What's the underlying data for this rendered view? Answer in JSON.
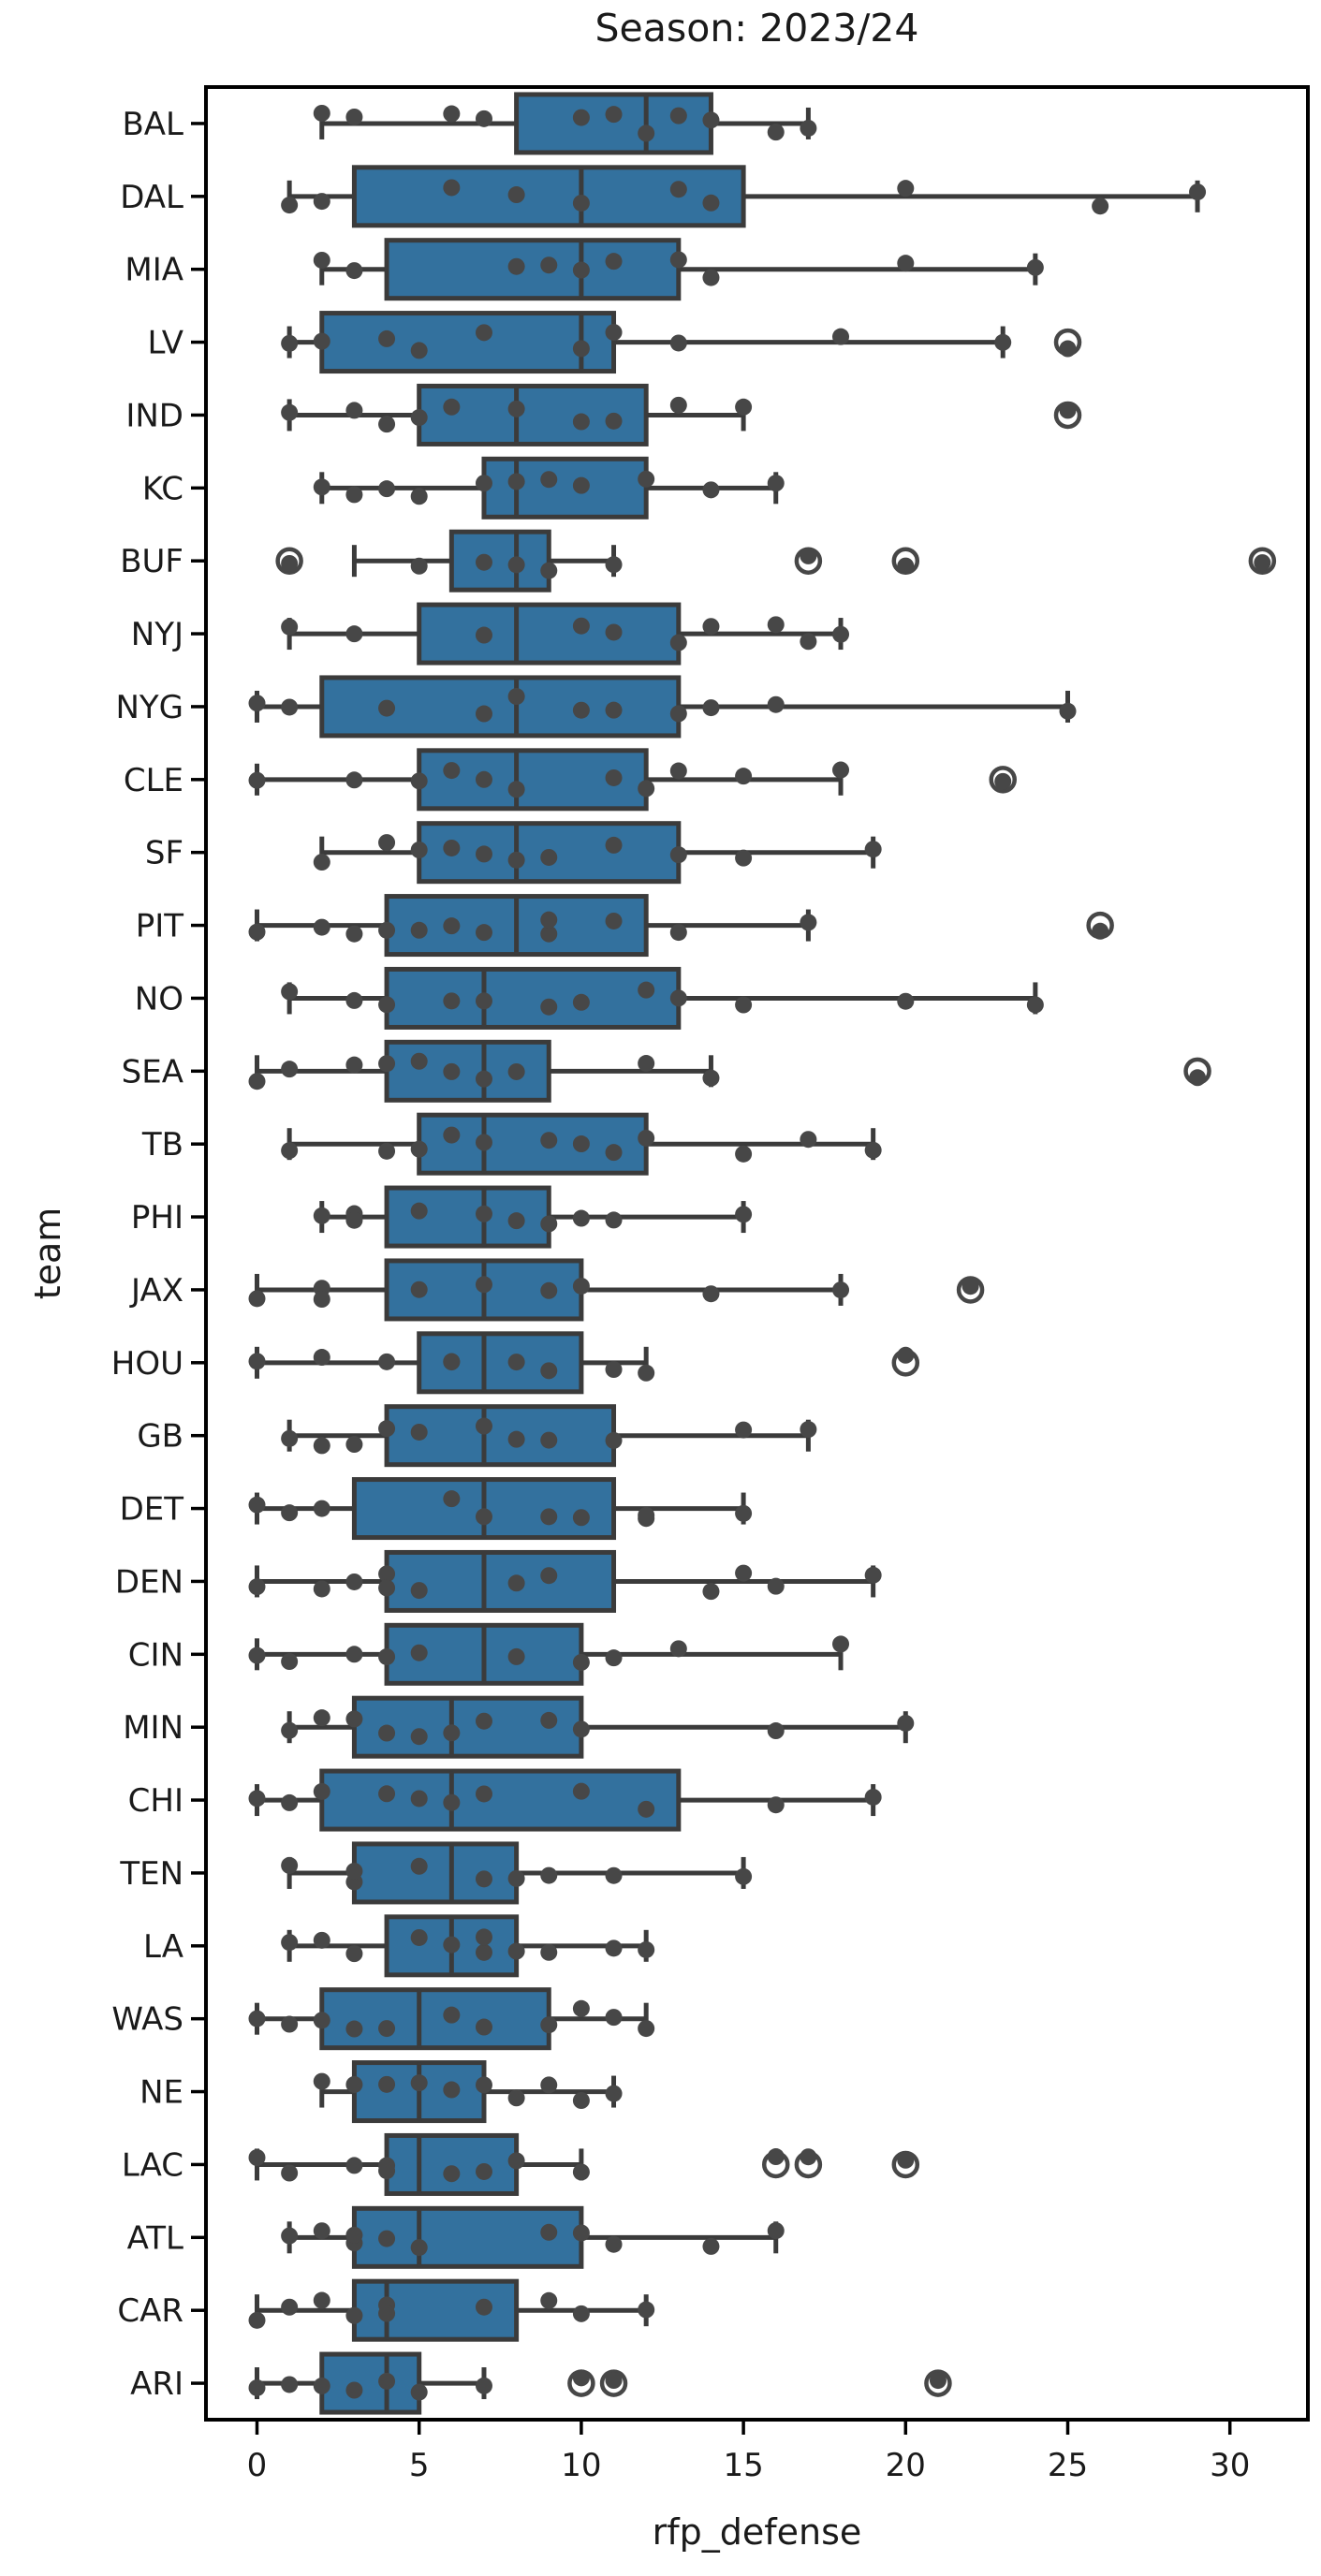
{
  "title": "Season: 2023/24",
  "x_axis": {
    "label": "rfp_defense",
    "ticks": [
      0,
      5,
      10,
      15,
      20,
      25,
      30
    ]
  },
  "y_axis": {
    "label": "team"
  },
  "colors": {
    "box_fill": "#33719e",
    "box_edge": "#3b3b3b",
    "whisker": "#3b3b3b",
    "point": "#474747",
    "outlier_ring": "#474747",
    "spine": "#000000",
    "text": "#1a1a1a",
    "background": "#ffffff"
  },
  "chart_data": {
    "type": "boxplot-horizontal",
    "title": "Season: 2023/24",
    "xlabel": "rfp_defense",
    "ylabel": "team",
    "xlim": [
      -1.52,
      32.4
    ],
    "x_ticks": [
      0,
      5,
      10,
      15,
      20,
      25,
      30
    ],
    "grid": false,
    "categories": [
      "BAL",
      "DAL",
      "MIA",
      "LV",
      "IND",
      "KC",
      "BUF",
      "NYJ",
      "NYG",
      "CLE",
      "SF",
      "PIT",
      "NO",
      "SEA",
      "TB",
      "PHI",
      "JAX",
      "HOU",
      "GB",
      "DET",
      "DEN",
      "CIN",
      "MIN",
      "CHI",
      "TEN",
      "LA",
      "WAS",
      "NE",
      "LAC",
      "ATL",
      "CAR",
      "ARI"
    ],
    "stats": [
      {
        "team": "BAL",
        "whislo": 2,
        "q1": 8,
        "med": 12,
        "q3": 14,
        "whishi": 17,
        "outliers": [],
        "points": [
          2,
          3,
          6,
          7,
          10,
          11,
          12,
          13,
          14,
          16,
          17
        ]
      },
      {
        "team": "DAL",
        "whislo": 1,
        "q1": 3,
        "med": 10,
        "q3": 15,
        "whishi": 29,
        "outliers": [],
        "points": [
          1,
          2,
          6,
          8,
          10,
          13,
          14,
          20,
          26,
          29
        ]
      },
      {
        "team": "MIA",
        "whislo": 2,
        "q1": 4,
        "med": 10,
        "q3": 13,
        "whishi": 24,
        "outliers": [],
        "points": [
          2,
          3,
          8,
          9,
          10,
          11,
          13,
          14,
          20,
          24
        ]
      },
      {
        "team": "LV",
        "whislo": 1,
        "q1": 2,
        "med": 10,
        "q3": 11,
        "whishi": 23,
        "outliers": [
          25
        ],
        "points": [
          1,
          2,
          4,
          5,
          7,
          10,
          11,
          13,
          18,
          23,
          25
        ]
      },
      {
        "team": "IND",
        "whislo": 1,
        "q1": 5,
        "med": 8,
        "q3": 12,
        "whishi": 15,
        "outliers": [
          25
        ],
        "points": [
          1,
          3,
          4,
          5,
          6,
          8,
          10,
          11,
          13,
          15,
          25
        ]
      },
      {
        "team": "KC",
        "whislo": 2,
        "q1": 7,
        "med": 8,
        "q3": 12,
        "whishi": 16,
        "outliers": [],
        "points": [
          2,
          3,
          4,
          5,
          7,
          8,
          9,
          10,
          12,
          14,
          16
        ]
      },
      {
        "team": "BUF",
        "whislo": 3,
        "q1": 6,
        "med": 8,
        "q3": 9,
        "whishi": 11,
        "outliers": [
          1,
          17,
          20,
          31
        ],
        "points": [
          1,
          5,
          7,
          8,
          9,
          11,
          17,
          20,
          31
        ]
      },
      {
        "team": "NYJ",
        "whislo": 1,
        "q1": 5,
        "med": 8,
        "q3": 13,
        "whishi": 18,
        "outliers": [],
        "points": [
          1,
          3,
          7,
          10,
          11,
          13,
          14,
          16,
          17,
          18
        ]
      },
      {
        "team": "NYG",
        "whislo": 0,
        "q1": 2,
        "med": 8,
        "q3": 13,
        "whishi": 25,
        "outliers": [],
        "points": [
          0,
          1,
          4,
          7,
          8,
          10,
          11,
          13,
          14,
          16,
          25
        ]
      },
      {
        "team": "CLE",
        "whislo": 0,
        "q1": 5,
        "med": 8,
        "q3": 12,
        "whishi": 18,
        "outliers": [
          23
        ],
        "points": [
          0,
          3,
          5,
          6,
          7,
          8,
          11,
          12,
          13,
          15,
          18,
          23
        ]
      },
      {
        "team": "SF",
        "whislo": 2,
        "q1": 5,
        "med": 8,
        "q3": 13,
        "whishi": 19,
        "outliers": [],
        "points": [
          2,
          4,
          5,
          6,
          7,
          8,
          9,
          11,
          13,
          15,
          19
        ]
      },
      {
        "team": "PIT",
        "whislo": 0,
        "q1": 4,
        "med": 8,
        "q3": 12,
        "whishi": 17,
        "outliers": [
          26
        ],
        "points": [
          0,
          2,
          3,
          4,
          5,
          6,
          7,
          9,
          9,
          11,
          13,
          17,
          26
        ]
      },
      {
        "team": "NO",
        "whislo": 1,
        "q1": 4,
        "med": 7,
        "q3": 13,
        "whishi": 24,
        "outliers": [],
        "points": [
          1,
          3,
          4,
          6,
          7,
          9,
          10,
          12,
          13,
          15,
          20,
          24
        ]
      },
      {
        "team": "SEA",
        "whislo": 0,
        "q1": 4,
        "med": 7,
        "q3": 9,
        "whishi": 14,
        "outliers": [
          29
        ],
        "points": [
          0,
          1,
          3,
          4,
          5,
          6,
          7,
          8,
          12,
          14,
          29
        ]
      },
      {
        "team": "TB",
        "whislo": 1,
        "q1": 5,
        "med": 7,
        "q3": 12,
        "whishi": 19,
        "outliers": [],
        "points": [
          1,
          4,
          5,
          6,
          7,
          9,
          10,
          11,
          12,
          15,
          17,
          19
        ]
      },
      {
        "team": "PHI",
        "whislo": 2,
        "q1": 4,
        "med": 7,
        "q3": 9,
        "whishi": 15,
        "outliers": [],
        "points": [
          2,
          3,
          3,
          5,
          7,
          8,
          9,
          10,
          11,
          15
        ]
      },
      {
        "team": "JAX",
        "whislo": 0,
        "q1": 4,
        "med": 7,
        "q3": 10,
        "whishi": 18,
        "outliers": [
          22
        ],
        "points": [
          0,
          2,
          2,
          5,
          7,
          9,
          10,
          14,
          18,
          22
        ]
      },
      {
        "team": "HOU",
        "whislo": 0,
        "q1": 5,
        "med": 7,
        "q3": 10,
        "whishi": 12,
        "outliers": [
          20
        ],
        "points": [
          0,
          2,
          4,
          6,
          6,
          8,
          9,
          11,
          12,
          20
        ]
      },
      {
        "team": "GB",
        "whislo": 1,
        "q1": 4,
        "med": 7,
        "q3": 11,
        "whishi": 17,
        "outliers": [],
        "points": [
          1,
          2,
          3,
          4,
          5,
          7,
          8,
          9,
          11,
          15,
          17
        ]
      },
      {
        "team": "DET",
        "whislo": 0,
        "q1": 3,
        "med": 7,
        "q3": 11,
        "whishi": 15,
        "outliers": [],
        "points": [
          0,
          1,
          2,
          6,
          7,
          9,
          10,
          12,
          12,
          15
        ]
      },
      {
        "team": "DEN",
        "whislo": 0,
        "q1": 4,
        "med": 7,
        "q3": 11,
        "whishi": 19,
        "outliers": [],
        "points": [
          0,
          2,
          3,
          4,
          4,
          5,
          8,
          9,
          14,
          15,
          16,
          19
        ]
      },
      {
        "team": "CIN",
        "whislo": 0,
        "q1": 4,
        "med": 7,
        "q3": 10,
        "whishi": 18,
        "outliers": [],
        "points": [
          0,
          1,
          3,
          4,
          5,
          8,
          10,
          11,
          13,
          18
        ]
      },
      {
        "team": "MIN",
        "whislo": 1,
        "q1": 3,
        "med": 6,
        "q3": 10,
        "whishi": 20,
        "outliers": [],
        "points": [
          1,
          2,
          3,
          4,
          5,
          6,
          7,
          9,
          10,
          16,
          20
        ]
      },
      {
        "team": "CHI",
        "whislo": 0,
        "q1": 2,
        "med": 6,
        "q3": 13,
        "whishi": 19,
        "outliers": [],
        "points": [
          0,
          1,
          2,
          4,
          5,
          6,
          7,
          10,
          12,
          16,
          19
        ]
      },
      {
        "team": "TEN",
        "whislo": 1,
        "q1": 3,
        "med": 6,
        "q3": 8,
        "whishi": 15,
        "outliers": [],
        "points": [
          1,
          3,
          3,
          5,
          7,
          8,
          9,
          11,
          15
        ]
      },
      {
        "team": "LA",
        "whislo": 1,
        "q1": 4,
        "med": 6,
        "q3": 8,
        "whishi": 12,
        "outliers": [],
        "points": [
          1,
          2,
          3,
          5,
          6,
          7,
          7,
          8,
          9,
          11,
          12
        ]
      },
      {
        "team": "WAS",
        "whislo": 0,
        "q1": 2,
        "med": 5,
        "q3": 9,
        "whishi": 12,
        "outliers": [],
        "points": [
          0,
          1,
          2,
          3,
          4,
          6,
          7,
          9,
          10,
          11,
          12
        ]
      },
      {
        "team": "NE",
        "whislo": 2,
        "q1": 3,
        "med": 5,
        "q3": 7,
        "whishi": 11,
        "outliers": [],
        "points": [
          2,
          3,
          4,
          5,
          6,
          7,
          8,
          9,
          10,
          11
        ]
      },
      {
        "team": "LAC",
        "whislo": 0,
        "q1": 4,
        "med": 5,
        "q3": 8,
        "whishi": 10,
        "outliers": [
          16,
          17,
          20
        ],
        "points": [
          0,
          1,
          3,
          4,
          4,
          6,
          7,
          8,
          10,
          16,
          17,
          20
        ]
      },
      {
        "team": "ATL",
        "whislo": 1,
        "q1": 3,
        "med": 5,
        "q3": 10,
        "whishi": 16,
        "outliers": [],
        "points": [
          1,
          2,
          3,
          3,
          4,
          5,
          9,
          10,
          11,
          14,
          16
        ]
      },
      {
        "team": "CAR",
        "whislo": 0,
        "q1": 3,
        "med": 4,
        "q3": 8,
        "whishi": 12,
        "outliers": [],
        "points": [
          0,
          1,
          2,
          3,
          4,
          4,
          7,
          9,
          10,
          12
        ]
      },
      {
        "team": "ARI",
        "whislo": 0,
        "q1": 2,
        "med": 4,
        "q3": 5,
        "whishi": 7,
        "outliers": [
          10,
          11,
          21
        ],
        "points": [
          0,
          1,
          2,
          3,
          4,
          5,
          7,
          10,
          11,
          21
        ]
      }
    ]
  }
}
